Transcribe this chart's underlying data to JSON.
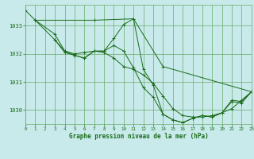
{
  "bg_color": "#c8eaea",
  "grid_color": "#6aaa6a",
  "line_color": "#1a6b1a",
  "title": "Graphe pression niveau de la mer (hPa)",
  "xlim": [
    0,
    23
  ],
  "ylim": [
    1029.5,
    1033.75
  ],
  "yticks": [
    1030,
    1031,
    1032,
    1033
  ],
  "xticks": [
    0,
    1,
    2,
    3,
    4,
    5,
    6,
    7,
    8,
    9,
    10,
    11,
    12,
    13,
    14,
    15,
    16,
    17,
    18,
    19,
    20,
    21,
    22,
    23
  ],
  "series": [
    {
      "x": [
        0,
        1,
        7,
        11,
        14,
        23
      ],
      "y": [
        1033.55,
        1033.2,
        1033.2,
        1033.25,
        1031.55,
        1030.65
      ]
    },
    {
      "x": [
        1,
        3,
        4,
        5,
        6,
        7,
        8,
        9,
        10,
        11,
        12,
        13,
        14,
        15,
        16,
        17,
        18,
        19,
        20,
        21,
        22,
        23
      ],
      "y": [
        1033.2,
        1032.7,
        1032.1,
        1032.0,
        1032.05,
        1032.1,
        1032.05,
        1031.85,
        1031.55,
        1031.45,
        1031.25,
        1030.95,
        1030.5,
        1030.05,
        1029.8,
        1029.75,
        1029.75,
        1029.8,
        1029.9,
        1030.05,
        1030.35,
        1030.65
      ]
    },
    {
      "x": [
        1,
        3,
        4,
        5,
        6,
        7,
        8,
        9,
        10,
        11,
        12,
        13,
        14,
        15,
        16,
        17,
        18,
        19,
        20,
        21,
        22,
        23
      ],
      "y": [
        1033.2,
        1032.5,
        1032.1,
        1031.95,
        1031.85,
        1032.1,
        1032.1,
        1032.55,
        1033.05,
        1033.25,
        1031.45,
        1030.9,
        1029.85,
        1029.65,
        1029.55,
        1029.7,
        1029.8,
        1029.75,
        1029.9,
        1030.35,
        1030.3,
        1030.65
      ]
    },
    {
      "x": [
        3,
        4,
        5,
        6,
        7,
        8,
        9,
        10,
        11,
        12,
        13,
        14,
        15,
        16,
        17,
        18,
        19,
        20,
        21,
        22,
        23
      ],
      "y": [
        1032.5,
        1032.05,
        1031.95,
        1031.85,
        1032.1,
        1032.1,
        1032.3,
        1032.1,
        1031.5,
        1030.8,
        1030.45,
        1029.85,
        1029.65,
        1029.55,
        1029.7,
        1029.8,
        1029.75,
        1029.9,
        1030.3,
        1030.25,
        1030.65
      ]
    }
  ]
}
